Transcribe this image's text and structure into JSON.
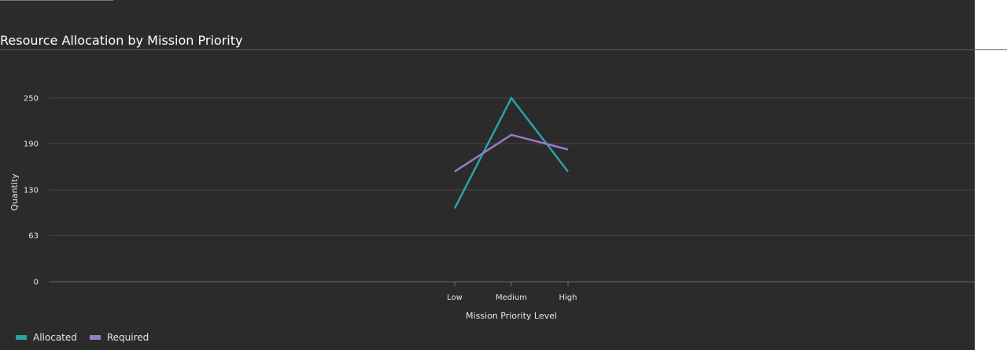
{
  "chart_data": {
    "type": "line",
    "title": "Resource Allocation by Mission Priority",
    "xlabel": "Mission Priority Level",
    "ylabel": "Quantity",
    "categories": [
      "Low",
      "Medium",
      "High"
    ],
    "y_ticks": [
      "0",
      "63",
      "130",
      "190",
      "250"
    ],
    "y_tick_values": [
      0,
      63,
      125,
      188,
      250
    ],
    "ylim": [
      0,
      250
    ],
    "grid": true,
    "legend_position": "bottom-left",
    "series": [
      {
        "name": "Allocated",
        "color": "#2aa3a3",
        "values": [
          100,
          250,
          150
        ]
      },
      {
        "name": "Required",
        "color": "#9b78c8",
        "values": [
          150,
          200,
          180
        ]
      }
    ]
  }
}
